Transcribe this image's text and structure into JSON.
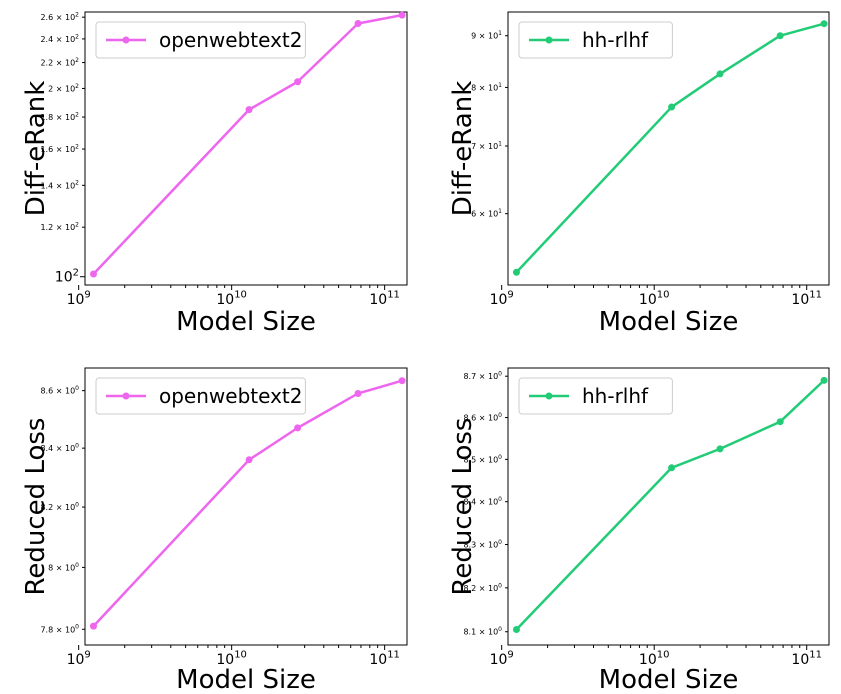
{
  "chart_data": [
    {
      "type": "line",
      "panel": "top-left",
      "xlabel": "Model Size",
      "ylabel": "Diff-eRank",
      "xscale": "log",
      "yscale": "log",
      "xlim": [
        1100000000.0,
        140000000000.0
      ],
      "ylim": [
        97,
        265
      ],
      "xtick_labels": [
        "10^9",
        "10^10",
        "10^11"
      ],
      "xtick_values": [
        1000000000.0,
        10000000000.0,
        100000000000.0
      ],
      "ytick_labels": [
        "10^2",
        "1.2 × 10^2",
        "1.4 × 10^2",
        "1.6 × 10^2",
        "1.8 × 10^2",
        "2 × 10^2",
        "2.2 × 10^2",
        "2.4 × 10^2",
        "2.6 × 10^2"
      ],
      "ytick_values": [
        100,
        120,
        140,
        160,
        180,
        200,
        220,
        240,
        260
      ],
      "legend_position": "top-left",
      "grid": false,
      "series": [
        {
          "name": "openwebtext2",
          "color": "#ee66ee",
          "x": [
            1250000000.0,
            13000000000.0,
            27000000000.0,
            67000000000.0,
            130000000000.0
          ],
          "y": [
            101,
            185,
            205,
            254,
            262
          ]
        }
      ]
    },
    {
      "type": "line",
      "panel": "top-right",
      "xlabel": "Model Size",
      "ylabel": "Diff-eRank",
      "xscale": "log",
      "yscale": "log",
      "xlim": [
        1100000000.0,
        140000000000.0
      ],
      "ylim": [
        51,
        95
      ],
      "xtick_labels": [
        "10^9",
        "10^10",
        "10^11"
      ],
      "xtick_values": [
        1000000000.0,
        10000000000.0,
        100000000000.0
      ],
      "ytick_labels": [
        "6 × 10^1",
        "7 × 10^1",
        "8 × 10^1",
        "9 × 10^1"
      ],
      "ytick_values": [
        60,
        70,
        80,
        90
      ],
      "legend_position": "top-left",
      "grid": false,
      "series": [
        {
          "name": "hh-rlhf",
          "color": "#22cc77",
          "x": [
            1250000000.0,
            13000000000.0,
            27000000000.0,
            67000000000.0,
            130000000000.0
          ],
          "y": [
            52.5,
            76.5,
            82.5,
            90,
            92.5
          ]
        }
      ]
    },
    {
      "type": "line",
      "panel": "bottom-left",
      "xlabel": "Model Size",
      "ylabel": "Reduced Loss",
      "xscale": "log",
      "yscale": "log",
      "xlim": [
        1100000000.0,
        140000000000.0
      ],
      "ylim": [
        7.75,
        8.68
      ],
      "xtick_labels": [
        "10^9",
        "10^10",
        "10^11"
      ],
      "xtick_values": [
        1000000000.0,
        10000000000.0,
        100000000000.0
      ],
      "ytick_labels": [
        "7.8 × 10^0",
        "8 × 10^0",
        "8.2 × 10^0",
        "8.4 × 10^0",
        "8.6 × 10^0"
      ],
      "ytick_values": [
        7.8,
        8.0,
        8.2,
        8.4,
        8.6
      ],
      "legend_position": "top-left",
      "grid": false,
      "series": [
        {
          "name": "openwebtext2",
          "color": "#ee66ee",
          "x": [
            1250000000.0,
            13000000000.0,
            27000000000.0,
            67000000000.0,
            130000000000.0
          ],
          "y": [
            7.81,
            8.36,
            8.47,
            8.59,
            8.635
          ]
        }
      ]
    },
    {
      "type": "line",
      "panel": "bottom-right",
      "xlabel": "Model Size",
      "ylabel": "Reduced Loss",
      "xscale": "log",
      "yscale": "log",
      "xlim": [
        1100000000.0,
        140000000000.0
      ],
      "ylim": [
        8.07,
        8.72
      ],
      "xtick_labels": [
        "10^9",
        "10^10",
        "10^11"
      ],
      "xtick_values": [
        1000000000.0,
        10000000000.0,
        100000000000.0
      ],
      "ytick_labels": [
        "8.1 × 10^0",
        "8.2 × 10^0",
        "8.3 × 10^0",
        "8.4 × 10^0",
        "8.5 × 10^0",
        "8.6 × 10^0",
        "8.7 × 10^0"
      ],
      "ytick_values": [
        8.1,
        8.2,
        8.3,
        8.4,
        8.5,
        8.6,
        8.7
      ],
      "legend_position": "top-left",
      "grid": false,
      "series": [
        {
          "name": "hh-rlhf",
          "color": "#22cc77",
          "x": [
            1250000000.0,
            13000000000.0,
            27000000000.0,
            67000000000.0,
            130000000000.0
          ],
          "y": [
            8.105,
            8.48,
            8.525,
            8.59,
            8.69
          ]
        }
      ]
    }
  ]
}
